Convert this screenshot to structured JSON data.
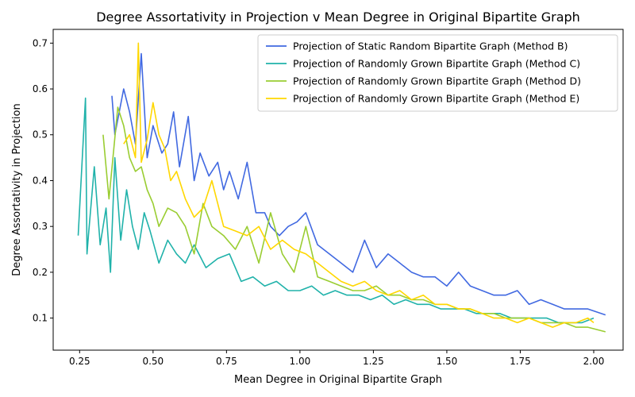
{
  "chart_data": {
    "type": "line",
    "title": "Degree Assortativity in Projection v Mean Degree in Original Bipartite Graph",
    "xlabel": "Mean Degree in Original Bipartite Graph",
    "ylabel": "Degree Assortativity in Projection",
    "xlim": [
      0.16,
      2.1
    ],
    "ylim": [
      0.03,
      0.73
    ],
    "xticks": [
      0.25,
      0.5,
      0.75,
      1.0,
      1.25,
      1.5,
      1.75,
      2.0
    ],
    "xtick_labels": [
      "0.25",
      "0.50",
      "0.75",
      "1.00",
      "1.25",
      "1.50",
      "1.75",
      "2.00"
    ],
    "yticks": [
      0.1,
      0.2,
      0.3,
      0.4,
      0.5,
      0.6,
      0.7
    ],
    "ytick_labels": [
      "0.1",
      "0.2",
      "0.3",
      "0.4",
      "0.5",
      "0.6",
      "0.7"
    ],
    "grid": false,
    "legend_position": "top-right",
    "series": [
      {
        "name": "Projection of Static Random Bipartite Graph (Method B)",
        "color": "#4169e1",
        "x": [
          0.36,
          0.37,
          0.4,
          0.42,
          0.44,
          0.46,
          0.48,
          0.5,
          0.53,
          0.55,
          0.57,
          0.59,
          0.62,
          0.64,
          0.66,
          0.69,
          0.72,
          0.74,
          0.76,
          0.79,
          0.82,
          0.85,
          0.88,
          0.9,
          0.93,
          0.96,
          0.99,
          1.02,
          1.06,
          1.1,
          1.14,
          1.18,
          1.22,
          1.26,
          1.3,
          1.34,
          1.38,
          1.42,
          1.46,
          1.5,
          1.54,
          1.58,
          1.62,
          1.66,
          1.7,
          1.74,
          1.78,
          1.82,
          1.86,
          1.9,
          1.94,
          1.98,
          2.04
        ],
        "values": [
          0.585,
          0.5,
          0.6,
          0.55,
          0.48,
          0.677,
          0.45,
          0.52,
          0.46,
          0.48,
          0.55,
          0.43,
          0.54,
          0.4,
          0.46,
          0.41,
          0.44,
          0.38,
          0.42,
          0.36,
          0.44,
          0.33,
          0.33,
          0.3,
          0.28,
          0.3,
          0.31,
          0.33,
          0.26,
          0.24,
          0.22,
          0.2,
          0.27,
          0.21,
          0.24,
          0.22,
          0.2,
          0.19,
          0.19,
          0.17,
          0.2,
          0.17,
          0.16,
          0.15,
          0.15,
          0.16,
          0.13,
          0.14,
          0.13,
          0.12,
          0.12,
          0.12,
          0.107
        ]
      },
      {
        "name": "Projection of Randomly Grown Bipartite Graph (Method C)",
        "color": "#20b2aa",
        "x": [
          0.245,
          0.26,
          0.27,
          0.275,
          0.28,
          0.3,
          0.32,
          0.34,
          0.355,
          0.37,
          0.39,
          0.41,
          0.43,
          0.45,
          0.47,
          0.49,
          0.52,
          0.55,
          0.58,
          0.61,
          0.64,
          0.68,
          0.72,
          0.76,
          0.8,
          0.84,
          0.88,
          0.92,
          0.96,
          1.0,
          1.04,
          1.08,
          1.12,
          1.16,
          1.2,
          1.24,
          1.28,
          1.32,
          1.36,
          1.4,
          1.44,
          1.48,
          1.52,
          1.56,
          1.6,
          1.64,
          1.68,
          1.72,
          1.76,
          1.8,
          1.84,
          1.88,
          1.92,
          1.96,
          2.0
        ],
        "values": [
          0.28,
          0.46,
          0.58,
          0.24,
          0.28,
          0.43,
          0.26,
          0.34,
          0.2,
          0.45,
          0.27,
          0.38,
          0.3,
          0.25,
          0.33,
          0.29,
          0.22,
          0.27,
          0.24,
          0.22,
          0.26,
          0.21,
          0.23,
          0.24,
          0.18,
          0.19,
          0.17,
          0.18,
          0.16,
          0.16,
          0.17,
          0.15,
          0.16,
          0.15,
          0.15,
          0.14,
          0.15,
          0.13,
          0.14,
          0.13,
          0.13,
          0.12,
          0.12,
          0.12,
          0.11,
          0.11,
          0.11,
          0.1,
          0.1,
          0.1,
          0.1,
          0.09,
          0.09,
          0.09,
          0.1
        ]
      },
      {
        "name": "Projection of Randomly Grown Bipartite Graph (Method D)",
        "color": "#9acd32",
        "x": [
          0.33,
          0.35,
          0.38,
          0.4,
          0.42,
          0.44,
          0.46,
          0.48,
          0.5,
          0.52,
          0.55,
          0.58,
          0.61,
          0.64,
          0.67,
          0.7,
          0.74,
          0.78,
          0.82,
          0.86,
          0.9,
          0.94,
          0.98,
          1.02,
          1.06,
          1.1,
          1.14,
          1.18,
          1.22,
          1.26,
          1.3,
          1.34,
          1.38,
          1.42,
          1.46,
          1.5,
          1.54,
          1.58,
          1.62,
          1.66,
          1.7,
          1.74,
          1.78,
          1.82,
          1.86,
          1.9,
          1.94,
          1.98,
          2.04
        ],
        "values": [
          0.5,
          0.36,
          0.56,
          0.52,
          0.45,
          0.42,
          0.43,
          0.38,
          0.35,
          0.3,
          0.34,
          0.33,
          0.3,
          0.24,
          0.35,
          0.3,
          0.28,
          0.25,
          0.3,
          0.22,
          0.33,
          0.24,
          0.2,
          0.3,
          0.19,
          0.18,
          0.17,
          0.16,
          0.16,
          0.17,
          0.15,
          0.15,
          0.14,
          0.14,
          0.13,
          0.13,
          0.12,
          0.12,
          0.11,
          0.11,
          0.1,
          0.1,
          0.1,
          0.09,
          0.09,
          0.09,
          0.08,
          0.08,
          0.07
        ]
      },
      {
        "name": "Projection of Randomly Grown Bipartite Graph (Method E)",
        "color": "#ffd700",
        "x": [
          0.4,
          0.42,
          0.44,
          0.45,
          0.46,
          0.48,
          0.5,
          0.52,
          0.54,
          0.56,
          0.58,
          0.61,
          0.64,
          0.67,
          0.7,
          0.74,
          0.78,
          0.82,
          0.86,
          0.9,
          0.94,
          0.98,
          1.02,
          1.06,
          1.1,
          1.14,
          1.18,
          1.22,
          1.26,
          1.3,
          1.34,
          1.38,
          1.42,
          1.46,
          1.5,
          1.54,
          1.58,
          1.62,
          1.66,
          1.7,
          1.74,
          1.78,
          1.82,
          1.86,
          1.9,
          1.94,
          1.98,
          2.0
        ],
        "values": [
          0.48,
          0.5,
          0.45,
          0.7,
          0.44,
          0.49,
          0.57,
          0.5,
          0.47,
          0.4,
          0.42,
          0.36,
          0.32,
          0.34,
          0.4,
          0.3,
          0.29,
          0.28,
          0.3,
          0.25,
          0.27,
          0.25,
          0.24,
          0.22,
          0.2,
          0.18,
          0.17,
          0.18,
          0.16,
          0.15,
          0.16,
          0.14,
          0.15,
          0.13,
          0.13,
          0.12,
          0.12,
          0.11,
          0.1,
          0.1,
          0.09,
          0.1,
          0.09,
          0.08,
          0.09,
          0.09,
          0.1,
          0.09
        ]
      }
    ]
  }
}
